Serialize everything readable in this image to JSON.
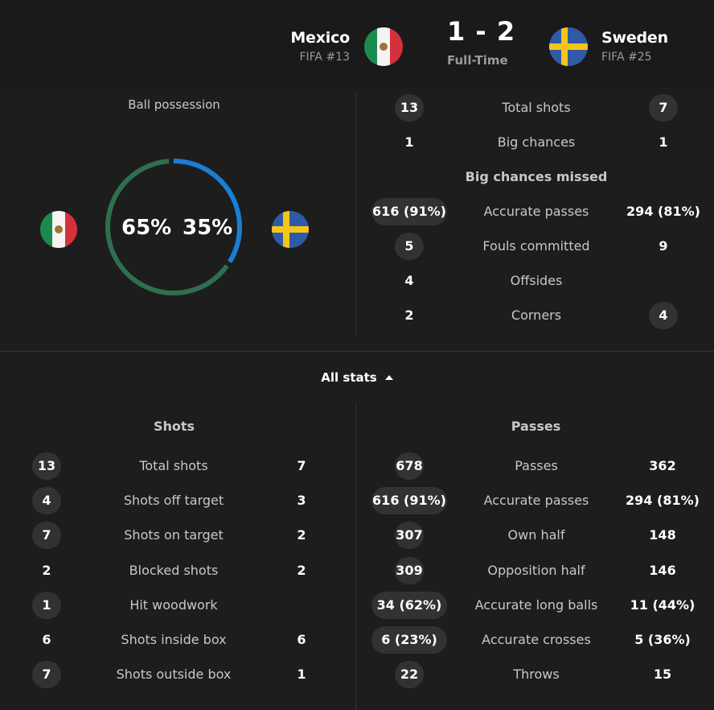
{
  "match": {
    "home": {
      "name": "Mexico",
      "rank": "FIFA #13",
      "flag": "mexico-flag"
    },
    "away": {
      "name": "Sweden",
      "rank": "FIFA #25",
      "flag": "sweden-flag"
    },
    "score": "1 - 2",
    "status": "Full-Time"
  },
  "possession": {
    "title": "Ball possession",
    "home_label": "65%",
    "away_label": "35%",
    "home_value": 65,
    "away_value": 35,
    "home_color": "#2f6f4f",
    "away_color": "#1a7fd4"
  },
  "top_stats": [
    {
      "home": "13",
      "label": "Total shots",
      "away": "7"
    },
    {
      "home": "1",
      "label": "Big chances",
      "away": "1"
    },
    {
      "home": "",
      "label": "Big chances missed",
      "away": ""
    },
    {
      "home": "616 (91%)",
      "label": "Accurate passes",
      "away": "294 (81%)"
    },
    {
      "home": "5",
      "label": "Fouls committed",
      "away": "9"
    },
    {
      "home": "4",
      "label": "Offsides",
      "away": ""
    },
    {
      "home": "2",
      "label": "Corners",
      "away": "4"
    }
  ],
  "all_stats_toggle": "All stats",
  "shots": {
    "title": "Shots",
    "rows": [
      {
        "home": "13",
        "label": "Total shots",
        "away": "7"
      },
      {
        "home": "4",
        "label": "Shots off target",
        "away": "3"
      },
      {
        "home": "7",
        "label": "Shots on target",
        "away": "2"
      },
      {
        "home": "2",
        "label": "Blocked shots",
        "away": "2"
      },
      {
        "home": "1",
        "label": "Hit woodwork",
        "away": ""
      },
      {
        "home": "6",
        "label": "Shots inside box",
        "away": "6"
      },
      {
        "home": "7",
        "label": "Shots outside box",
        "away": "1"
      }
    ]
  },
  "passes": {
    "title": "Passes",
    "rows": [
      {
        "home": "678",
        "label": "Passes",
        "away": "362"
      },
      {
        "home": "616 (91%)",
        "label": "Accurate passes",
        "away": "294 (81%)"
      },
      {
        "home": "307",
        "label": "Own half",
        "away": "148"
      },
      {
        "home": "309",
        "label": "Opposition half",
        "away": "146"
      },
      {
        "home": "34 (62%)",
        "label": "Accurate long balls",
        "away": "11 (44%)"
      },
      {
        "home": "6 (23%)",
        "label": "Accurate crosses",
        "away": "5 (36%)"
      },
      {
        "home": "22",
        "label": "Throws",
        "away": "15"
      }
    ]
  }
}
